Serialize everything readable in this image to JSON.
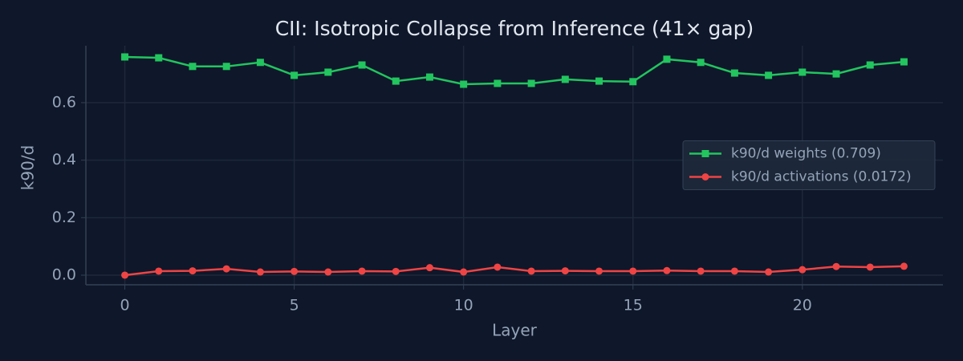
{
  "chart_data": {
    "type": "line",
    "title": "CII: Isotropic Collapse from Inference (41× gap)",
    "x_label": "Layer",
    "y_label": "k90/d",
    "x": [
      0,
      1,
      2,
      3,
      4,
      5,
      6,
      7,
      8,
      9,
      10,
      11,
      12,
      13,
      14,
      15,
      16,
      17,
      18,
      19,
      20,
      21,
      22,
      23
    ],
    "series": [
      {
        "name": "k90/d weights (0.709)",
        "color": "#22c55e",
        "marker": "square",
        "values": [
          0.759,
          0.756,
          0.726,
          0.726,
          0.74,
          0.695,
          0.706,
          0.731,
          0.675,
          0.689,
          0.664,
          0.667,
          0.667,
          0.681,
          0.675,
          0.673,
          0.751,
          0.74,
          0.703,
          0.695,
          0.706,
          0.7,
          0.731,
          0.742
        ]
      },
      {
        "name": "k90/d activations (0.0172)",
        "color": "#ef4444",
        "marker": "circle",
        "values": [
          0.0,
          0.014,
          0.015,
          0.022,
          0.011,
          0.013,
          0.011,
          0.014,
          0.013,
          0.026,
          0.011,
          0.028,
          0.014,
          0.015,
          0.014,
          0.014,
          0.016,
          0.014,
          0.014,
          0.011,
          0.019,
          0.03,
          0.028,
          0.031
        ]
      }
    ],
    "xlim": [
      -1.15,
      24.15
    ],
    "xticks": [
      0,
      5,
      10,
      15,
      20
    ],
    "ylim": [
      -0.0335,
      0.798
    ],
    "yticks": [
      {
        "value": 0,
        "label": "0.0"
      },
      0.2,
      0.4,
      0.6
    ],
    "grid": true,
    "legend": "center right"
  }
}
